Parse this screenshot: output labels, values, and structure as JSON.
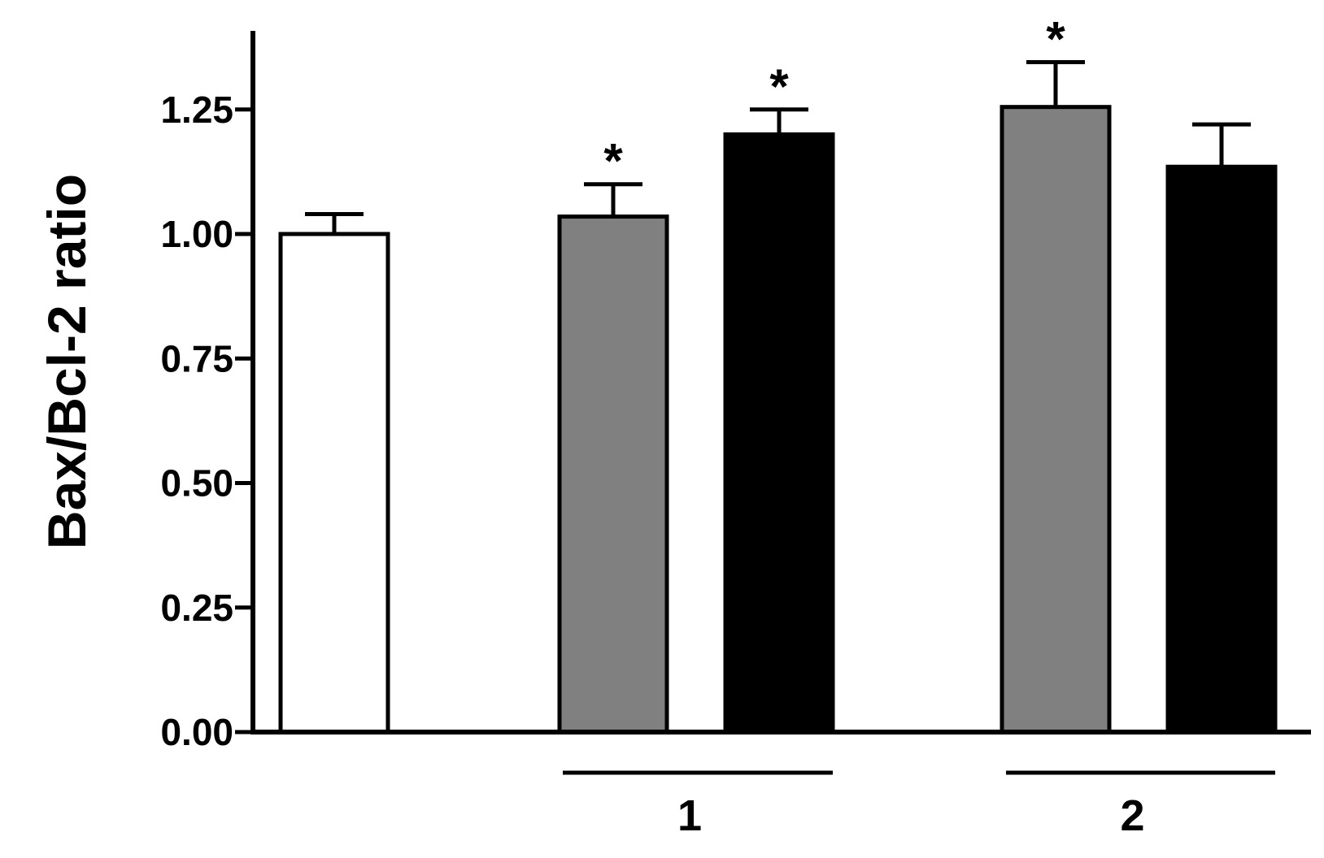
{
  "chart_data": {
    "type": "bar",
    "title": "",
    "xlabel": "",
    "ylabel": "Bax/Bcl-2 ratio",
    "ylim": [
      0,
      1.4
    ],
    "yticks": [
      "0.00",
      "0.25",
      "0.50",
      "0.75",
      "1.00",
      "1.25"
    ],
    "grid": false,
    "bars": [
      {
        "value": 1.0,
        "error": 0.04,
        "color": "#ffffff",
        "significant": false
      },
      {
        "value": 1.035,
        "error": 0.065,
        "color": "#808080",
        "significant": true,
        "group": "1"
      },
      {
        "value": 1.2,
        "error": 0.05,
        "color": "#000000",
        "significant": true,
        "group": "1"
      },
      {
        "value": 1.255,
        "error": 0.09,
        "color": "#808080",
        "significant": true,
        "group": "2"
      },
      {
        "value": 1.135,
        "error": 0.085,
        "color": "#000000",
        "significant": false,
        "group": "2"
      }
    ],
    "groups": [
      {
        "label": "1"
      },
      {
        "label": "2"
      }
    ],
    "significance_marker": "*"
  }
}
